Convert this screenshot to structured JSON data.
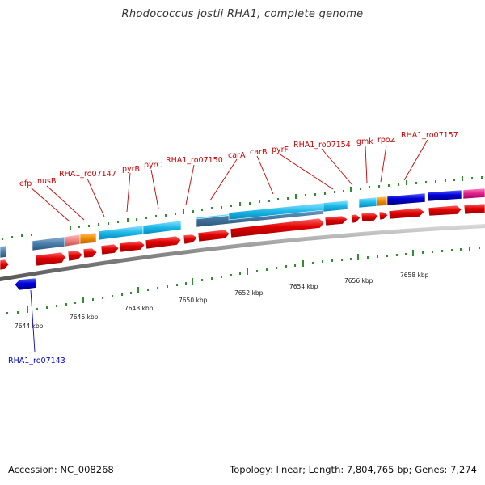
{
  "title": "Rhodococcus jostii RHA1, complete genome",
  "footer": {
    "accession": "Accession: NC_008268",
    "summary": "Topology: linear; Length: 7,804,765 bp; Genes: 7,274"
  },
  "colors": {
    "forward_cds": "#dd0000",
    "reverse_cds": "#0000cc",
    "cyan_feature": "#1ab8e8",
    "steel_feature": "#4a7eab",
    "orange_feature": "#f08a00",
    "pink_feature": "#f08080",
    "magenta_feature": "#e0208a",
    "tick": "#2f8f2f",
    "backbone": "#888888"
  },
  "scale_labels": [
    "7644 kbp",
    "7646 kbp",
    "7648 kbp",
    "7650 kbp",
    "7652 kbp",
    "7654 kbp",
    "7656 kbp",
    "7658 kbp"
  ],
  "gene_labels_top": [
    "efp",
    "nusB",
    "RHA1_ro07147",
    "pyrB",
    "pyrC",
    "RHA1_ro07150",
    "carA",
    "carB",
    "pyrF",
    "RHA1_ro07154",
    "gmk",
    "rpoZ",
    "RHA1_ro07157"
  ],
  "gene_labels_bottom": [
    "RHA1_ro07143"
  ]
}
